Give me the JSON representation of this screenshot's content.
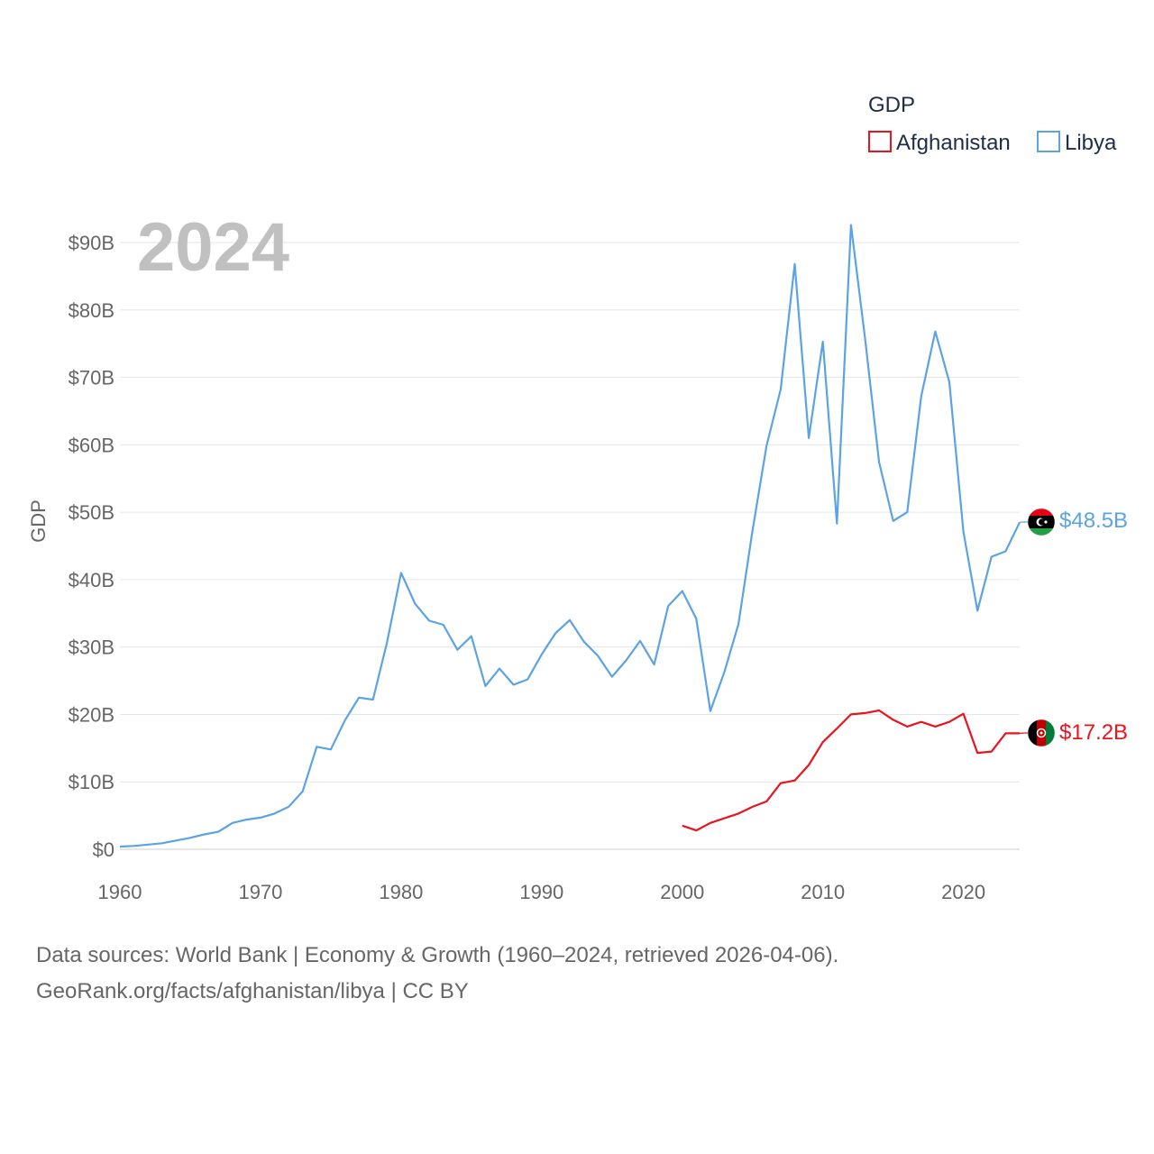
{
  "chart_data": {
    "type": "line",
    "title": "",
    "year_label": "2024",
    "xlabel": "",
    "ylabel": "GDP",
    "xlim": [
      1960,
      2024
    ],
    "ylim": [
      0,
      90
    ],
    "x_ticks": [
      1960,
      1970,
      1980,
      1990,
      2000,
      2010,
      2020
    ],
    "x_tick_labels": [
      "1960",
      "1970",
      "1980",
      "1990",
      "2000",
      "2010",
      "2020"
    ],
    "y_ticks": [
      0,
      10,
      20,
      30,
      40,
      50,
      60,
      70,
      80,
      90
    ],
    "y_tick_labels": [
      "$0",
      "$10B",
      "$20B",
      "$30B",
      "$40B",
      "$50B",
      "$60B",
      "$70B",
      "$80B",
      "$90B"
    ],
    "legend": {
      "title": "GDP",
      "position": "top-right"
    },
    "series": [
      {
        "name": "Afghanistan",
        "color": "#e8141e",
        "end_label": "$17.2B",
        "flag_icon": "afghanistan-flag-icon",
        "x": [
          2000,
          2001,
          2002,
          2003,
          2004,
          2005,
          2006,
          2007,
          2008,
          2009,
          2010,
          2011,
          2012,
          2013,
          2014,
          2015,
          2016,
          2017,
          2018,
          2019,
          2020,
          2021,
          2022,
          2023,
          2024
        ],
        "values": [
          3.5,
          2.8,
          3.9,
          4.6,
          5.3,
          6.3,
          7.1,
          9.8,
          10.2,
          12.5,
          15.9,
          17.9,
          20.0,
          20.2,
          20.6,
          19.2,
          18.2,
          18.9,
          18.2,
          18.9,
          20.1,
          14.3,
          14.5,
          17.2,
          17.2
        ]
      },
      {
        "name": "Libya",
        "color": "#5ba3e3",
        "end_label": "$48.5B",
        "flag_icon": "libya-flag-icon",
        "x": [
          1960,
          1961,
          1962,
          1963,
          1964,
          1965,
          1966,
          1967,
          1968,
          1969,
          1970,
          1971,
          1972,
          1973,
          1974,
          1975,
          1976,
          1977,
          1978,
          1979,
          1980,
          1981,
          1982,
          1983,
          1984,
          1985,
          1986,
          1987,
          1988,
          1989,
          1990,
          1991,
          1992,
          1993,
          1994,
          1995,
          1996,
          1997,
          1998,
          1999,
          2000,
          2001,
          2002,
          2003,
          2004,
          2005,
          2006,
          2007,
          2008,
          2009,
          2010,
          2011,
          2012,
          2013,
          2014,
          2015,
          2016,
          2017,
          2018,
          2019,
          2020,
          2021,
          2022,
          2023,
          2024
        ],
        "values": [
          0.4,
          0.5,
          0.7,
          0.9,
          1.3,
          1.7,
          2.2,
          2.6,
          3.9,
          4.4,
          4.7,
          5.3,
          6.3,
          8.6,
          15.2,
          14.8,
          19.1,
          22.5,
          22.2,
          30.7,
          41.0,
          36.4,
          33.9,
          33.3,
          29.6,
          31.6,
          24.2,
          26.8,
          24.4,
          25.2,
          28.9,
          32.1,
          34.0,
          30.8,
          28.7,
          25.6,
          28.0,
          30.9,
          27.4,
          36.1,
          38.3,
          34.2,
          20.5,
          26.3,
          33.4,
          47.3,
          59.9,
          68.2,
          86.8,
          61.0,
          75.3,
          48.3,
          92.6,
          75.8,
          57.4,
          48.7,
          50.0,
          67.2,
          76.8,
          69.3,
          47.1,
          35.4,
          43.4,
          44.2,
          48.5
        ]
      }
    ]
  },
  "source": {
    "line1": "Data sources: World Bank | Economy & Growth (1960–2024, retrieved 2026-04-06).",
    "line2": "GeoRank.org/facts/afghanistan/libya | CC BY"
  }
}
